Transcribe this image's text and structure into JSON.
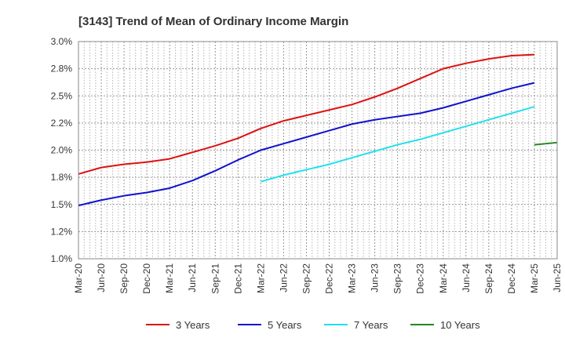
{
  "chart_data": {
    "type": "line",
    "title": "[3143]  Trend of Mean of Ordinary Income Margin",
    "xlabel": "",
    "ylabel": "",
    "ylim": [
      1.0,
      3.0
    ],
    "y_ticks": [
      "1.0%",
      "1.2%",
      "1.5%",
      "1.8%",
      "2.0%",
      "2.2%",
      "2.5%",
      "2.8%",
      "3.0%"
    ],
    "y_tick_values": [
      1.0,
      1.25,
      1.5,
      1.75,
      2.0,
      2.25,
      2.5,
      2.75,
      3.0
    ],
    "x_ticks": [
      "Mar-20",
      "Jun-20",
      "Sep-20",
      "Dec-20",
      "Mar-21",
      "Jun-21",
      "Sep-21",
      "Dec-21",
      "Mar-22",
      "Jun-22",
      "Sep-22",
      "Dec-22",
      "Mar-23",
      "Jun-23",
      "Sep-23",
      "Dec-23",
      "Mar-24",
      "Jun-24",
      "Sep-24",
      "Dec-24",
      "Mar-25",
      "Jun-25"
    ],
    "grid": true,
    "legend_position": "bottom",
    "series": [
      {
        "name": "3 Years",
        "color": "#dd1111",
        "start_index": 0,
        "values": [
          1.78,
          1.84,
          1.87,
          1.89,
          1.92,
          1.98,
          2.04,
          2.11,
          2.2,
          2.27,
          2.32,
          2.37,
          2.42,
          2.49,
          2.57,
          2.66,
          2.75,
          2.8,
          2.84,
          2.87,
          2.88
        ]
      },
      {
        "name": "5 Years",
        "color": "#1111cc",
        "start_index": 0,
        "values": [
          1.49,
          1.54,
          1.58,
          1.61,
          1.65,
          1.72,
          1.81,
          1.91,
          2.0,
          2.06,
          2.12,
          2.18,
          2.24,
          2.28,
          2.31,
          2.34,
          2.39,
          2.45,
          2.51,
          2.57,
          2.62
        ]
      },
      {
        "name": "7 Years",
        "color": "#22e0ee",
        "start_index": 8,
        "values": [
          1.71,
          1.77,
          1.82,
          1.87,
          1.93,
          1.99,
          2.05,
          2.1,
          2.16,
          2.22,
          2.28,
          2.34,
          2.4
        ]
      },
      {
        "name": "10 Years",
        "color": "#228822",
        "start_index": 20,
        "values": [
          2.05,
          2.07
        ]
      }
    ]
  }
}
